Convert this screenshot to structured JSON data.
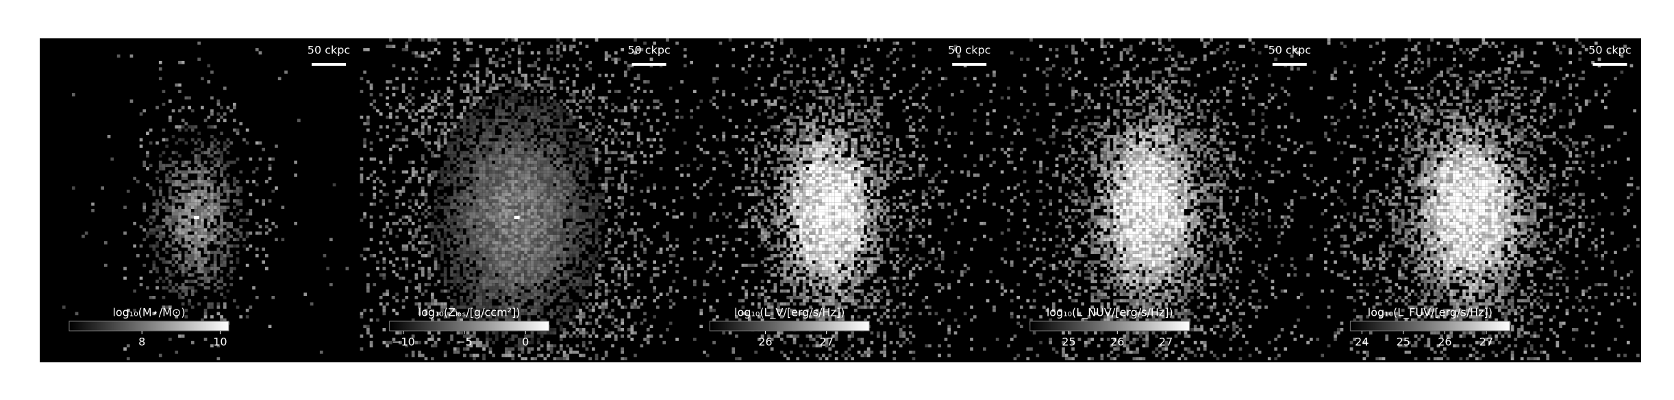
{
  "panels": [
    {
      "scale_label": "50 ckpc",
      "colorbar_label": "log₁₀(M⋆/M⊙)",
      "clim": [
        6.14,
        10.22
      ],
      "ticks": [
        8,
        10
      ]
    },
    {
      "scale_label": "50 ckpc",
      "colorbar_label": "log₁₀(Zₗₒₛ/[g/ccm²])",
      "clim": [
        -11.14,
        1.93
      ],
      "ticks": [
        {
          "value": -10,
          "label": "−10"
        },
        {
          "value": -5,
          "label": "−5"
        },
        0
      ]
    },
    {
      "scale_label": "50 ckpc",
      "colorbar_label": "log₁₀(L_V/[erg/s/Hz])",
      "clim": [
        25.09,
        27.7
      ],
      "ticks": [
        26,
        27
      ]
    },
    {
      "scale_label": "50 ckpc",
      "colorbar_label": "log₁₀(L_NUV/[erg/s/Hz])",
      "clim": [
        24.2,
        27.49
      ],
      "ticks": [
        25,
        26,
        27
      ]
    },
    {
      "scale_label": "50 ckpc",
      "colorbar_label": "log₁₀(L_FUV/[erg/s/Hz])",
      "clim": [
        23.72,
        27.57
      ],
      "ticks": [
        24,
        25,
        26,
        27
      ]
    }
  ]
}
